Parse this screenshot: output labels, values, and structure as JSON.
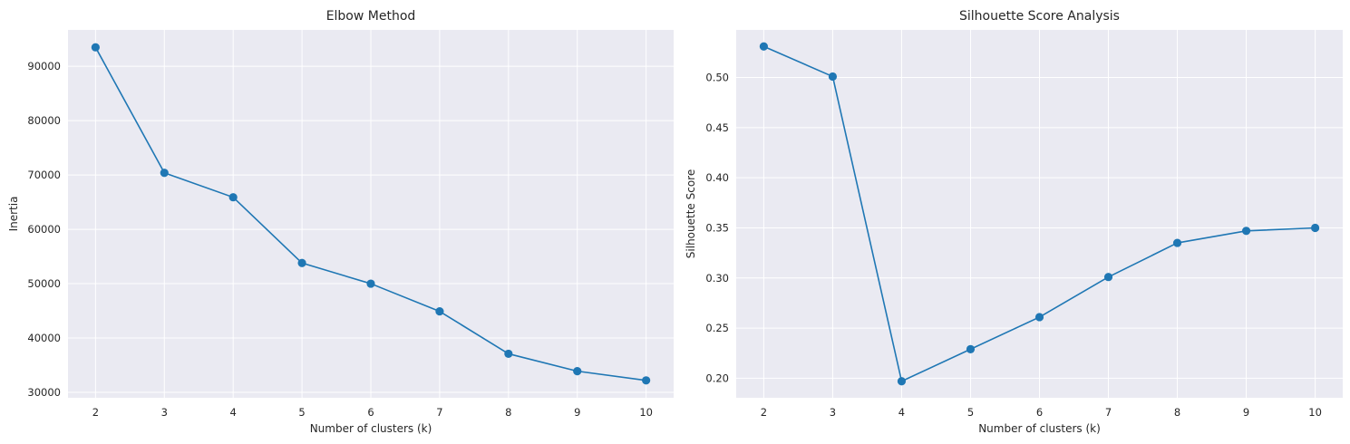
{
  "chart_data": [
    {
      "type": "line",
      "title": "Elbow Method",
      "xlabel": "Number of clusters (k)",
      "ylabel": "Inertia",
      "x": [
        2,
        3,
        4,
        5,
        6,
        7,
        8,
        9,
        10
      ],
      "series": [
        {
          "values": [
            93500,
            70400,
            65900,
            53800,
            50000,
            44900,
            37100,
            33900,
            32200
          ]
        }
      ],
      "xticks": [
        2,
        3,
        4,
        5,
        6,
        7,
        8,
        9,
        10
      ],
      "yticks": [
        30000,
        40000,
        50000,
        60000,
        70000,
        80000,
        90000
      ],
      "xlim": [
        1.6,
        10.4
      ],
      "ylim": [
        29000,
        96700
      ],
      "grid": true,
      "line_color": "#1f77b4",
      "background_color": "#eaeaf2"
    },
    {
      "type": "line",
      "title": "Silhouette Score Analysis",
      "xlabel": "Number of clusters (k)",
      "ylabel": "Silhouette Score",
      "x": [
        2,
        3,
        4,
        5,
        6,
        7,
        8,
        9,
        10
      ],
      "series": [
        {
          "values": [
            0.531,
            0.501,
            0.197,
            0.229,
            0.261,
            0.301,
            0.335,
            0.347,
            0.35
          ]
        }
      ],
      "xticks": [
        2,
        3,
        4,
        5,
        6,
        7,
        8,
        9,
        10
      ],
      "yticks": [
        "0.20",
        "0.25",
        "0.30",
        "0.35",
        "0.40",
        "0.45",
        "0.50"
      ],
      "xlim": [
        1.6,
        10.4
      ],
      "ylim": [
        0.1805,
        0.5475
      ],
      "grid": true,
      "line_color": "#1f77b4",
      "background_color": "#eaeaf2"
    }
  ]
}
